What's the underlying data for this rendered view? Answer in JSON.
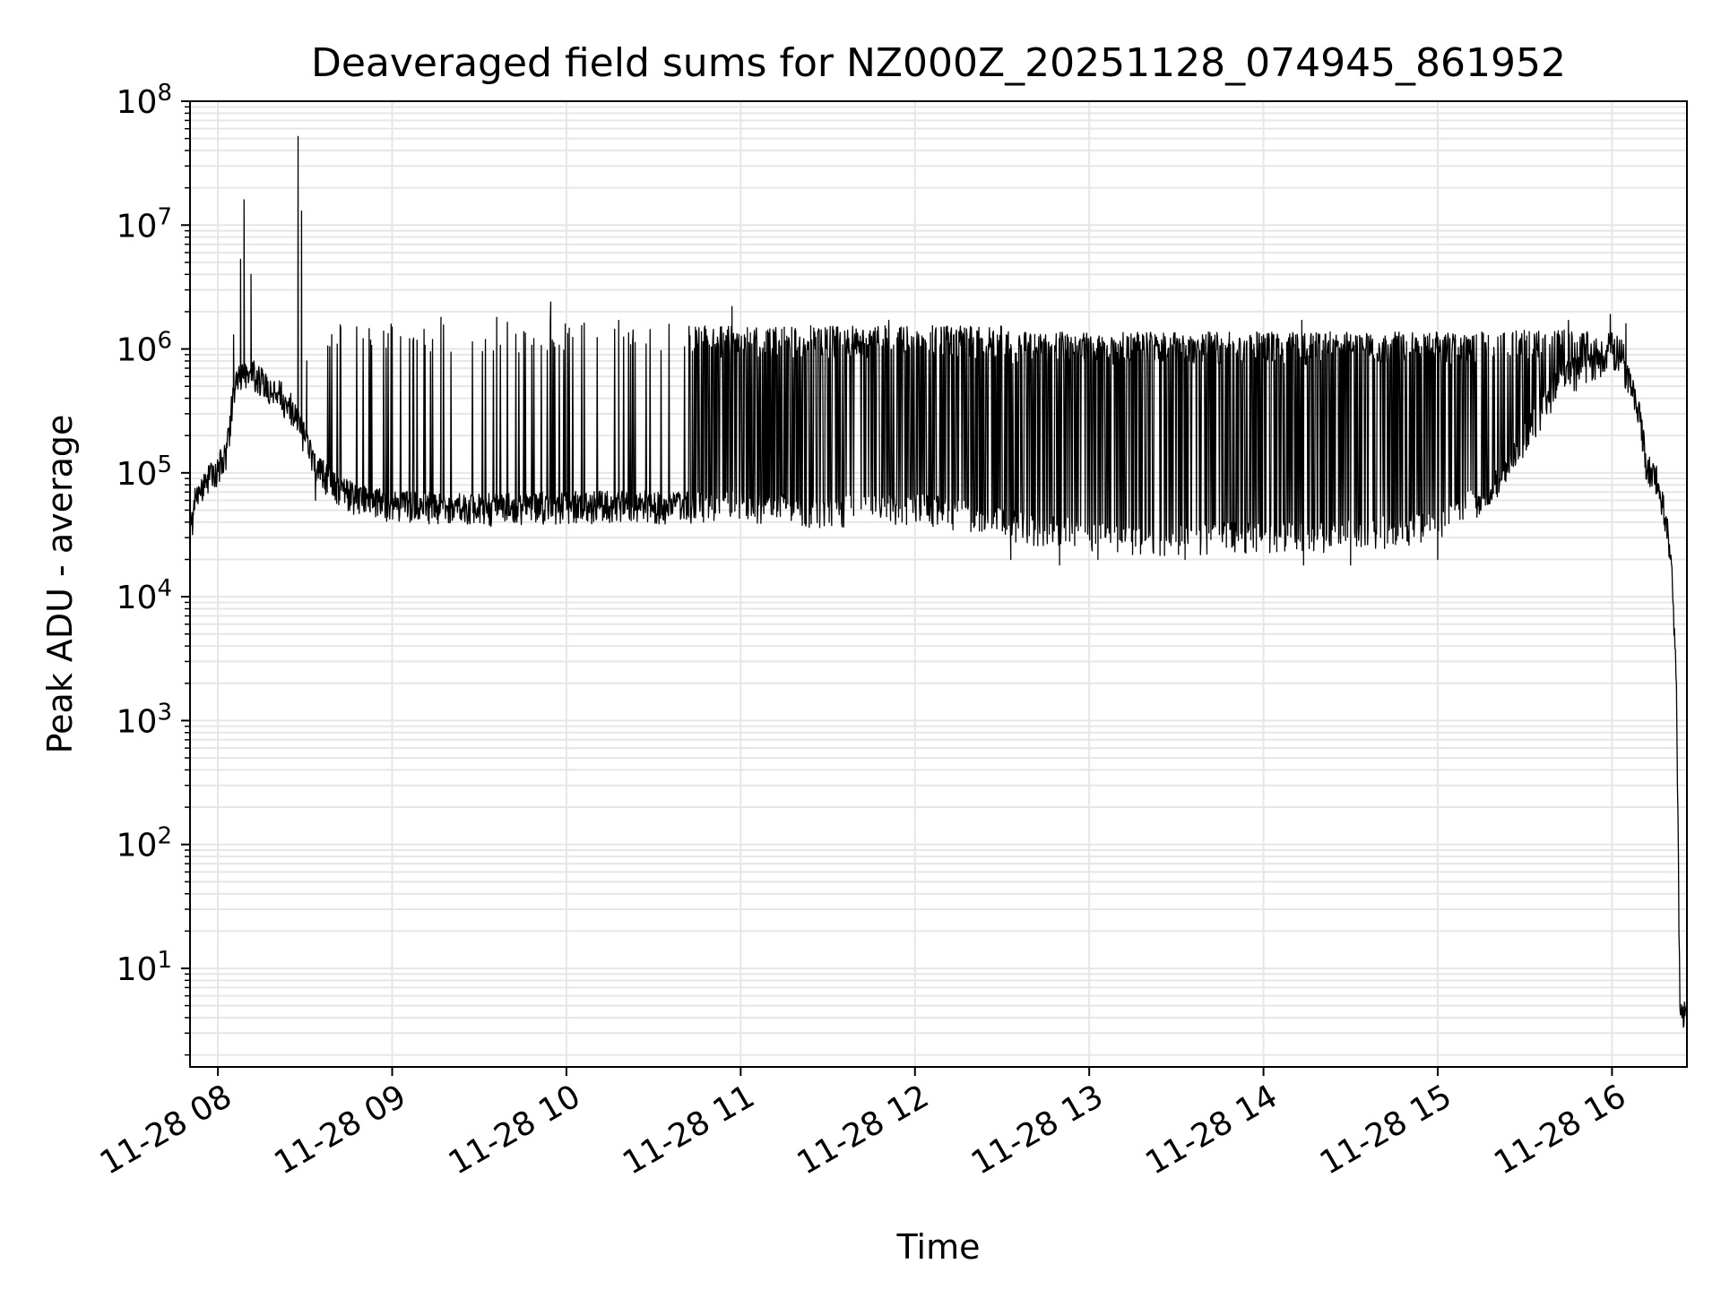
{
  "chart_data": {
    "type": "line",
    "title": "Deaveraged field sums for NZ000Z_20251128_074945_861952",
    "xlabel": "Time",
    "ylabel": "Peak ADU - average",
    "y_scale": "log",
    "ylim": [
      1.6,
      100000000
    ],
    "xlim_hours": [
      7.84,
      16.43
    ],
    "grid": true,
    "grid_minor": true,
    "legend": "none",
    "line_color": "#000000",
    "grid_color": "#e6e6e6",
    "x_ticks": [
      {
        "hour": 8,
        "label": "11-28 08"
      },
      {
        "hour": 9,
        "label": "11-28 09"
      },
      {
        "hour": 10,
        "label": "11-28 10"
      },
      {
        "hour": 11,
        "label": "11-28 11"
      },
      {
        "hour": 12,
        "label": "11-28 12"
      },
      {
        "hour": 13,
        "label": "11-28 13"
      },
      {
        "hour": 14,
        "label": "11-28 14"
      },
      {
        "hour": 15,
        "label": "11-28 15"
      },
      {
        "hour": 16,
        "label": "11-28 16"
      }
    ],
    "y_ticks": [
      {
        "value": 10,
        "base": "10",
        "exp": "1"
      },
      {
        "value": 100,
        "base": "10",
        "exp": "2"
      },
      {
        "value": 1000,
        "base": "10",
        "exp": "3"
      },
      {
        "value": 10000,
        "base": "10",
        "exp": "4"
      },
      {
        "value": 100000,
        "base": "10",
        "exp": "5"
      },
      {
        "value": 1000000,
        "base": "10",
        "exp": "6"
      },
      {
        "value": 10000000,
        "base": "10",
        "exp": "7"
      },
      {
        "value": 100000000,
        "base": "10",
        "exp": "8"
      }
    ],
    "baseline_segments": [
      [
        7.84,
        30000
      ],
      [
        7.87,
        60000
      ],
      [
        7.92,
        80000
      ],
      [
        8.0,
        110000
      ],
      [
        8.05,
        150000
      ],
      [
        8.1,
        600000
      ],
      [
        8.2,
        650000
      ],
      [
        8.35,
        450000
      ],
      [
        8.45,
        300000
      ],
      [
        8.55,
        120000
      ],
      [
        8.7,
        70000
      ],
      [
        9.0,
        55000
      ],
      [
        9.5,
        52000
      ],
      [
        10.0,
        55000
      ],
      [
        10.5,
        55000
      ],
      [
        11.0,
        55000
      ],
      [
        11.5,
        50000
      ],
      [
        12.0,
        55000
      ],
      [
        12.5,
        40000
      ],
      [
        13.0,
        32000
      ],
      [
        13.5,
        30000
      ],
      [
        14.0,
        32000
      ],
      [
        14.5,
        32000
      ],
      [
        15.0,
        40000
      ],
      [
        15.3,
        70000
      ],
      [
        15.5,
        200000
      ],
      [
        15.7,
        550000
      ],
      [
        15.9,
        800000
      ],
      [
        16.05,
        800000
      ],
      [
        16.15,
        350000
      ],
      [
        16.2,
        110000
      ],
      [
        16.25,
        95000
      ],
      [
        16.3,
        50000
      ],
      [
        16.34,
        20000
      ],
      [
        16.37,
        2000
      ],
      [
        16.38,
        100
      ],
      [
        16.39,
        4
      ],
      [
        16.41,
        4
      ],
      [
        16.43,
        5
      ]
    ],
    "spikes": [
      [
        8.09,
        1300000
      ],
      [
        8.13,
        5300000
      ],
      [
        8.15,
        16000000
      ],
      [
        8.19,
        4000000
      ],
      [
        8.46,
        52000000
      ],
      [
        8.48,
        13000000
      ],
      [
        8.51,
        800000
      ],
      [
        9.0,
        1500000
      ],
      [
        9.28,
        1800000
      ],
      [
        9.6,
        1800000
      ],
      [
        9.91,
        2400000
      ],
      [
        10.3,
        1700000
      ],
      [
        10.74,
        1500000
      ],
      [
        10.95,
        2200000
      ],
      [
        11.25,
        1500000
      ],
      [
        11.55,
        1500000
      ],
      [
        11.85,
        1700000
      ],
      [
        12.15,
        1500000
      ],
      [
        12.45,
        1400000
      ],
      [
        12.75,
        1300000
      ],
      [
        13.05,
        1200000
      ],
      [
        13.35,
        1300000
      ],
      [
        13.65,
        1300000
      ],
      [
        14.0,
        1300000
      ],
      [
        14.22,
        1700000
      ],
      [
        14.5,
        1300000
      ],
      [
        14.8,
        1300000
      ],
      [
        15.1,
        1300000
      ],
      [
        15.45,
        1400000
      ],
      [
        15.75,
        1700000
      ],
      [
        15.99,
        1900000
      ],
      [
        16.08,
        1600000
      ]
    ],
    "dips": [
      [
        8.56,
        60000
      ],
      [
        12.55,
        20000
      ],
      [
        12.83,
        18000
      ],
      [
        13.05,
        20000
      ],
      [
        13.55,
        20000
      ],
      [
        14.23,
        18000
      ],
      [
        14.5,
        18000
      ],
      [
        15.0,
        20000
      ]
    ],
    "oscillation_bands": [
      {
        "from": 8.6,
        "to": 10.7,
        "peak": 1500000,
        "prob": 0.09
      },
      {
        "from": 10.7,
        "to": 12.5,
        "peak": 1400000,
        "prob": 0.55
      },
      {
        "from": 12.5,
        "to": 15.2,
        "peak": 1250000,
        "prob": 0.62
      },
      {
        "from": 15.2,
        "to": 16.1,
        "peak": 1300000,
        "prob": 0.35
      }
    ]
  }
}
